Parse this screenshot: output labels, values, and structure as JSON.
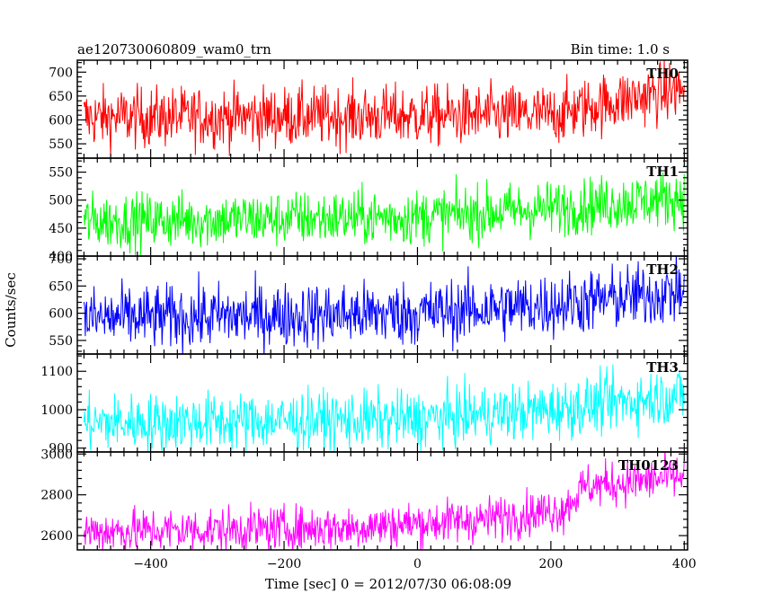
{
  "header": {
    "title": "ae120730060809_wam0_trn",
    "bin_time": "Bin time: 1.0 s"
  },
  "chart_data": {
    "type": "line",
    "title": "ae120730060809_wam0_trn",
    "xlabel": "Time [sec] 0 = 2012/07/30 06:08:09",
    "ylabel": "Counts/sec",
    "xlim": [
      -510,
      405
    ],
    "x_ticks": [
      -400,
      -200,
      0,
      200,
      400
    ],
    "x_tick_labels": [
      "−400",
      "−200",
      "0",
      "200",
      "400"
    ],
    "bin_time_s": 1.0,
    "grid": false,
    "panels": [
      {
        "name": "TH0",
        "color": "#ff0000",
        "ylim": [
          520,
          725
        ],
        "y_ticks": [
          550,
          600,
          650,
          700
        ],
        "y_tick_labels": [
          "550",
          "600",
          "650",
          "700"
        ],
        "trend": [
          [
            -500,
            605
          ],
          [
            200,
            610
          ],
          [
            300,
            640
          ],
          [
            400,
            665
          ]
        ],
        "noise": 32
      },
      {
        "name": "TH1",
        "color": "#00ff00",
        "ylim": [
          400,
          575
        ],
        "y_ticks": [
          400,
          450,
          500,
          550
        ],
        "y_tick_labels": [
          "400",
          "450",
          "500",
          "550"
        ],
        "trend": [
          [
            -500,
            462
          ],
          [
            0,
            470
          ],
          [
            200,
            485
          ],
          [
            400,
            505
          ]
        ],
        "noise": 25
      },
      {
        "name": "TH2",
        "color": "#0000ff",
        "ylim": [
          525,
          705
        ],
        "y_ticks": [
          550,
          600,
          650,
          700
        ],
        "y_tick_labels": [
          "550",
          "600",
          "650",
          "700"
        ],
        "trend": [
          [
            -500,
            590
          ],
          [
            0,
            600
          ],
          [
            200,
            615
          ],
          [
            400,
            640
          ]
        ],
        "noise": 30
      },
      {
        "name": "TH3",
        "color": "#00ffff",
        "ylim": [
          890,
          1145
        ],
        "y_ticks": [
          900,
          1000,
          1100
        ],
        "y_tick_labels": [
          "900",
          "1000",
          "1100"
        ],
        "trend": [
          [
            -500,
            965
          ],
          [
            0,
            975
          ],
          [
            200,
            1000
          ],
          [
            400,
            1040
          ]
        ],
        "noise": 38
      },
      {
        "name": "TH0123",
        "color": "#ff00ff",
        "ylim": [
          2530,
          3010
        ],
        "y_ticks": [
          2600,
          2800,
          3000
        ],
        "y_tick_labels": [
          "2600",
          "2800",
          "3000"
        ],
        "trend": [
          [
            -500,
            2620
          ],
          [
            -100,
            2640
          ],
          [
            100,
            2680
          ],
          [
            220,
            2730
          ],
          [
            250,
            2840
          ],
          [
            400,
            2890
          ]
        ],
        "noise": 55
      }
    ]
  }
}
